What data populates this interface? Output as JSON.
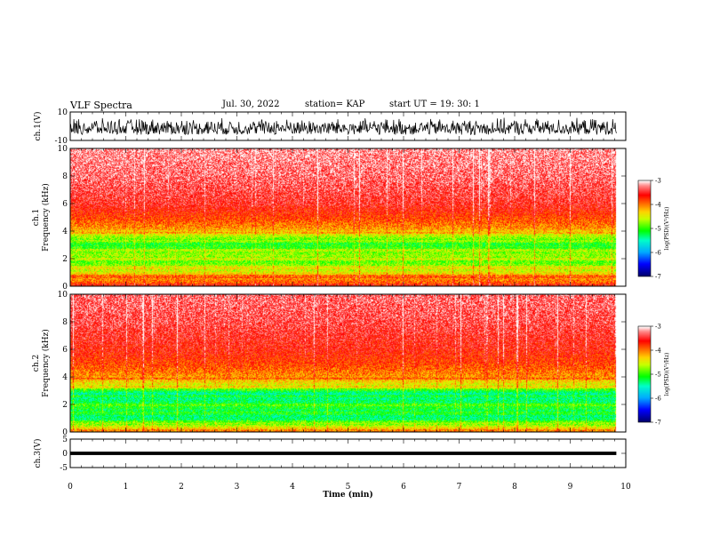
{
  "header": {
    "title": "VLF Spectra",
    "date": "Jul. 30, 2022",
    "station": "station= KAP",
    "start": "start UT = 19: 30: 1"
  },
  "chart_data": [
    {
      "panel": "ch1-waveform",
      "type": "line",
      "ylabel": "ch.1(V)",
      "ylim": [
        -10,
        10
      ],
      "yticks": [
        "10",
        "-10"
      ],
      "xlim": [
        0,
        10
      ],
      "data_extent_min": 9.83,
      "description_values": {
        "approx_amplitude_range_V": [
          -6,
          6
        ]
      }
    },
    {
      "panel": "ch1-spectrogram",
      "type": "heatmap",
      "ylabel": "ch.1\nFrequency (kHz)",
      "ylim": [
        0,
        10
      ],
      "yticks": [
        "0",
        "2",
        "4",
        "6",
        "8",
        "10"
      ],
      "xlim": [
        0,
        10
      ],
      "data_extent_min": 9.83,
      "freq_profile_log_psd": [
        {
          "f": 0.3,
          "v": -3.9
        },
        {
          "f": 0.8,
          "v": -4.2
        },
        {
          "f": 1.2,
          "v": -4.6
        },
        {
          "f": 1.8,
          "v": -4.9
        },
        {
          "f": 2.3,
          "v": -4.7
        },
        {
          "f": 2.8,
          "v": -5.0
        },
        {
          "f": 3.2,
          "v": -5.1
        },
        {
          "f": 3.6,
          "v": -4.7
        },
        {
          "f": 4.2,
          "v": -4.1
        },
        {
          "f": 5.0,
          "v": -3.8
        },
        {
          "f": 6.0,
          "v": -3.5
        },
        {
          "f": 8.0,
          "v": -3.3
        },
        {
          "f": 10.0,
          "v": -3.2
        }
      ],
      "colorbar": {
        "range": [
          -7,
          -3
        ],
        "ticks": [
          "-3",
          "-4",
          "-5",
          "-6",
          "-7"
        ],
        "label": "log(PSD)(V²/Hz)"
      }
    },
    {
      "panel": "ch2-spectrogram",
      "type": "heatmap",
      "ylabel": "ch.2\nFrequency (kHz)",
      "ylim": [
        0,
        10
      ],
      "yticks": [
        "0",
        "2",
        "4",
        "6",
        "8",
        "10"
      ],
      "xlim": [
        0,
        10
      ],
      "data_extent_min": 9.83,
      "freq_profile_log_psd": [
        {
          "f": 0.3,
          "v": -4.3
        },
        {
          "f": 0.8,
          "v": -5.2
        },
        {
          "f": 1.3,
          "v": -5.4
        },
        {
          "f": 1.8,
          "v": -5.1
        },
        {
          "f": 2.3,
          "v": -5.3
        },
        {
          "f": 2.8,
          "v": -5.5
        },
        {
          "f": 3.3,
          "v": -4.6
        },
        {
          "f": 4.0,
          "v": -4.1
        },
        {
          "f": 5.0,
          "v": -3.8
        },
        {
          "f": 6.0,
          "v": -3.6
        },
        {
          "f": 8.0,
          "v": -3.4
        },
        {
          "f": 10.0,
          "v": -3.3
        }
      ],
      "colorbar": {
        "range": [
          -7,
          -3
        ],
        "ticks": [
          "-3",
          "-4",
          "-5",
          "-6",
          "-7"
        ],
        "label": "log(PSD)(V²/Hz)"
      }
    },
    {
      "panel": "ch3-waveform",
      "type": "line",
      "ylabel": "ch.3(V)",
      "ylim": [
        -5,
        5
      ],
      "yticks": [
        "5",
        "0",
        "-5"
      ],
      "xlim": [
        0,
        10
      ],
      "data_extent_min": 9.83,
      "description_values": {
        "approx_band_V": [
          -0.6,
          0.6
        ]
      }
    }
  ],
  "xaxis": {
    "label": "Time (min)",
    "ticks": [
      "0",
      "1",
      "2",
      "3",
      "4",
      "5",
      "6",
      "7",
      "8",
      "9",
      "10"
    ]
  },
  "colors": {
    "colormap": [
      "#000080",
      "#0000ff",
      "#00ffff",
      "#00ff00",
      "#ffff00",
      "#ff8000",
      "#ff0000",
      "#ffffff"
    ]
  }
}
